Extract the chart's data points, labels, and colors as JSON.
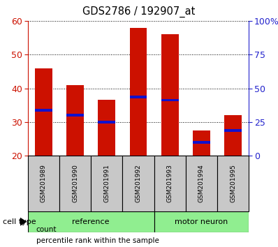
{
  "title": "GDS2786 / 192907_at",
  "samples": [
    "GSM201989",
    "GSM201990",
    "GSM201991",
    "GSM201992",
    "GSM201993",
    "GSM201994",
    "GSM201995"
  ],
  "count_values": [
    46,
    41,
    36.5,
    58,
    56,
    27.5,
    32
  ],
  "percentile_values": [
    33.5,
    32,
    30,
    37.5,
    36.5,
    24,
    27.5
  ],
  "y_min": 20,
  "y_max": 60,
  "y_ticks": [
    20,
    30,
    40,
    50,
    60
  ],
  "right_axis_labels": [
    "0",
    "25",
    "50",
    "75",
    "100%"
  ],
  "reference_label": "reference",
  "motor_neuron_label": "motor neuron",
  "cell_type_label": "cell type",
  "bar_color": "#CC1100",
  "percentile_color": "#1111CC",
  "bar_width": 0.55,
  "tick_label_bg": "#C8C8C8",
  "group_color": "#90EE90",
  "legend_count": "count",
  "legend_percentile": "percentile rank within the sample",
  "left_axis_color": "#CC1100",
  "right_axis_color": "#2222CC",
  "n_reference": 4,
  "n_motor": 3
}
